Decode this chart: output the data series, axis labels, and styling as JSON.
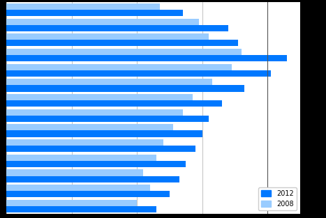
{
  "values_2012": [
    27000,
    34000,
    35500,
    43000,
    40500,
    36500,
    33000,
    31000,
    30000,
    29000,
    27500,
    26500,
    25000,
    23000
  ],
  "values_2008": [
    23500,
    29500,
    31000,
    36000,
    34500,
    31500,
    28500,
    27000,
    25500,
    24000,
    23000,
    21000,
    22000,
    20000
  ],
  "color_2012": "#0078FF",
  "color_2008": "#99CCFF",
  "xlim": [
    0,
    45000
  ],
  "xtick_positions": [
    0,
    10000,
    20000,
    30000,
    40000
  ],
  "legend_labels": [
    "2012",
    "2008"
  ],
  "figure_facecolor": "#000000",
  "plot_facecolor": "#ffffff",
  "bar_height": 0.42,
  "n_groups": 14,
  "vline_x": 40000,
  "vline_color": "#555555"
}
